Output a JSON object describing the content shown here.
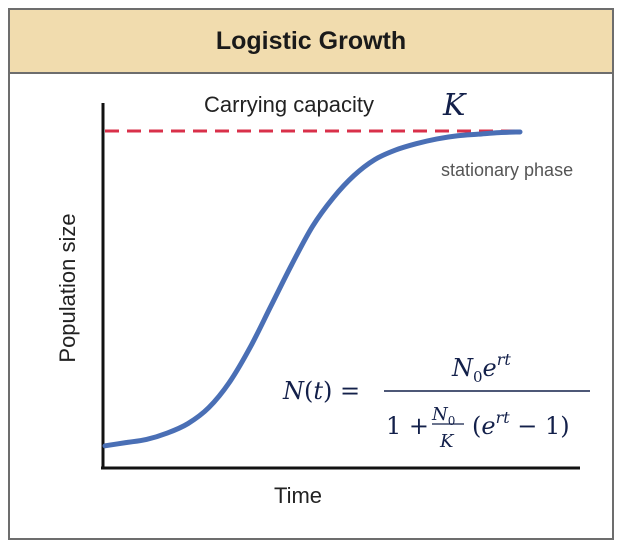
{
  "chart_data": {
    "type": "line",
    "title": "Logistic Growth",
    "xlabel": "Time",
    "ylabel": "Population size",
    "xlim": [
      0,
      10
    ],
    "ylim": [
      0,
      1.05
    ],
    "series": [
      {
        "x": [
          0,
          0.5,
          1,
          1.5,
          2,
          2.5,
          3,
          3.5,
          4,
          4.5,
          5,
          5.5,
          6,
          6.5,
          7,
          7.5,
          8,
          8.5,
          9,
          9.5,
          10
        ],
        "values": [
          0.01,
          0.02,
          0.03,
          0.05,
          0.08,
          0.13,
          0.21,
          0.32,
          0.45,
          0.58,
          0.7,
          0.79,
          0.86,
          0.91,
          0.94,
          0.96,
          0.975,
          0.985,
          0.99,
          0.995,
          0.997
        ],
        "color": "#4a6fb5"
      }
    ],
    "carrying_capacity": {
      "label": "Carrying capacity",
      "symbol": "K",
      "value": 1.0,
      "color": "#d9304a"
    },
    "annotations": {
      "stationary_phase": "stationary phase"
    },
    "formula": {
      "lhs": "N(t) =",
      "numerator": "N₀e^{rt}",
      "denominator": "1 + (N₀/K)(e^{rt} − 1)"
    },
    "grid": false
  }
}
